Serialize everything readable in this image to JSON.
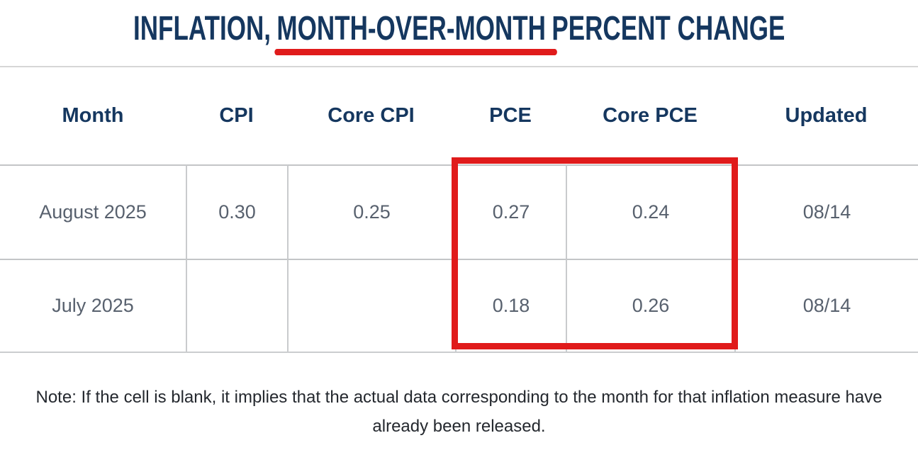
{
  "title": {
    "part1": "INFLATION,",
    "highlight": "MONTH-OVER-MONTH",
    "part2": "PERCENT CHANGE"
  },
  "chart_data": {
    "type": "table",
    "title": "INFLATION, MONTH-OVER-MONTH PERCENT CHANGE",
    "columns": [
      "Month",
      "CPI",
      "Core CPI",
      "PCE",
      "Core PCE",
      "Updated"
    ],
    "rows": [
      {
        "month": "August 2025",
        "cpi": 0.3,
        "core_cpi": 0.25,
        "pce": 0.27,
        "core_pce": 0.24,
        "updated": "08/14"
      },
      {
        "month": "July 2025",
        "cpi": null,
        "core_cpi": null,
        "pce": 0.18,
        "core_pce": 0.26,
        "updated": "08/14"
      }
    ],
    "units": "month-over-month percent change",
    "annotations": {
      "red_underline_text": "MONTH-OVER-MONTH",
      "red_box_highlighted_columns": [
        "PCE",
        "Core PCE"
      ],
      "red_box_highlighted_rows": [
        "August 2025",
        "July 2025"
      ]
    }
  },
  "table": {
    "headers": [
      "Month",
      "CPI",
      "Core CPI",
      "PCE",
      "Core PCE",
      "Updated"
    ],
    "rows": [
      [
        "August 2025",
        "0.30",
        "0.25",
        "0.27",
        "0.24",
        "08/14"
      ],
      [
        "July 2025",
        "",
        "",
        "0.18",
        "0.26",
        "08/14"
      ]
    ]
  },
  "note": "Note: If the cell is blank, it implies that the actual data corresponding to the month for that inflation measure have already been released.",
  "colors": {
    "accent_red": "#e01b1b",
    "header_navy": "#15375f",
    "value_slate": "#58616e",
    "note_dark": "#24282e",
    "grid_gray": "#c9cbcd"
  }
}
